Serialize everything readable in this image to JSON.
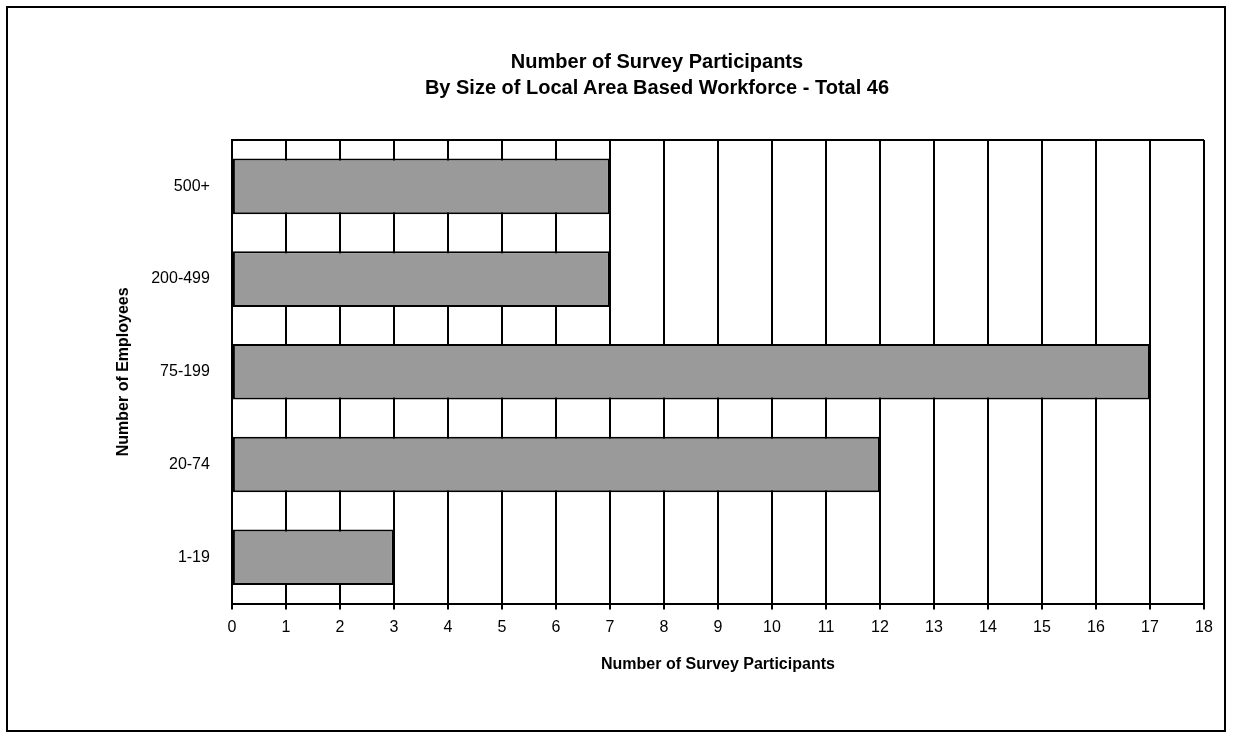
{
  "chart_data": {
    "type": "bar",
    "orientation": "horizontal",
    "title": "Number of Survey Participants",
    "subtitle": "By Size of Local Area Based Workforce - Total 46",
    "xlabel": "Number of Survey Participants",
    "ylabel": "Number of Employees",
    "categories": [
      "500+",
      "200-499",
      "75-199",
      "20-74",
      "1-19"
    ],
    "values": [
      7,
      7,
      17,
      12,
      3
    ],
    "color": "#9a9a9a",
    "xlim": [
      0,
      18
    ],
    "xticks": [
      0,
      1,
      2,
      3,
      4,
      5,
      6,
      7,
      8,
      9,
      10,
      11,
      12,
      13,
      14,
      15,
      16,
      17,
      18
    ],
    "grid": "x",
    "legend": false
  }
}
